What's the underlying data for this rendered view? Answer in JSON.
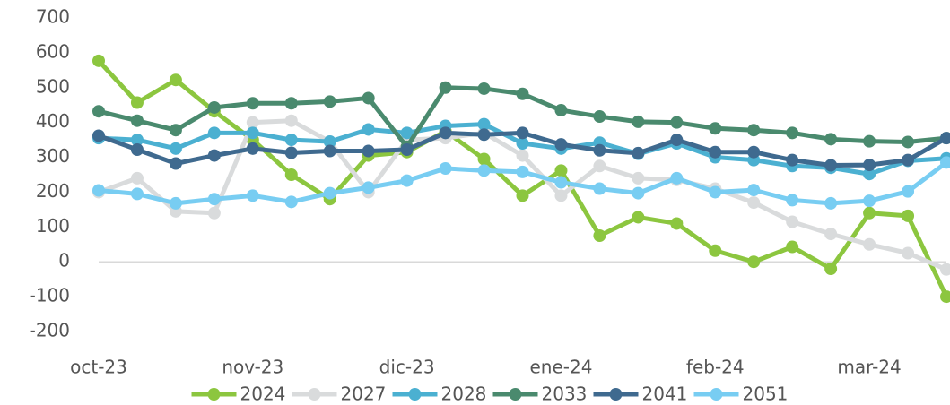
{
  "chart_data": {
    "type": "line",
    "categories": [
      "oct-23",
      null,
      null,
      null,
      "nov-23",
      null,
      null,
      null,
      "dic-23",
      null,
      null,
      null,
      "ene-24",
      null,
      null,
      null,
      "feb-24",
      null,
      null,
      null,
      "mar-24",
      null,
      null
    ],
    "series": [
      {
        "name": "2024",
        "color": "#8cc63f",
        "values": [
          577,
          457,
          522,
          432,
          350,
          250,
          180,
          305,
          315,
          375,
          295,
          190,
          262,
          75,
          128,
          110,
          32,
          0,
          43,
          -20,
          140,
          132,
          -100
        ]
      },
      {
        "name": "2027",
        "color": "#d9dbdc",
        "values": [
          200,
          240,
          145,
          140,
          400,
          405,
          345,
          200,
          350,
          355,
          370,
          305,
          190,
          275,
          240,
          235,
          210,
          170,
          115,
          80,
          50,
          25,
          -22
        ]
      },
      {
        "name": "2028",
        "color": "#4bb0d1",
        "values": [
          355,
          350,
          325,
          370,
          370,
          350,
          345,
          380,
          370,
          390,
          395,
          340,
          325,
          342,
          310,
          340,
          300,
          292,
          275,
          270,
          252,
          290,
          297
        ]
      },
      {
        "name": "2033",
        "color": "#4a8a6e",
        "values": [
          432,
          405,
          378,
          443,
          455,
          455,
          460,
          470,
          330,
          500,
          497,
          482,
          435,
          417,
          402,
          400,
          383,
          378,
          370,
          352,
          346,
          344,
          355
        ]
      },
      {
        "name": "2041",
        "color": "#3f6a8f",
        "values": [
          362,
          322,
          282,
          305,
          325,
          313,
          318,
          318,
          322,
          370,
          365,
          370,
          337,
          320,
          312,
          350,
          315,
          315,
          292,
          277,
          278,
          292,
          355
        ]
      },
      {
        "name": "2051",
        "color": "#78cdf2",
        "values": [
          205,
          195,
          168,
          180,
          190,
          172,
          197,
          213,
          233,
          268,
          262,
          258,
          228,
          210,
          197,
          240,
          200,
          206,
          177,
          168,
          175,
          202,
          285
        ]
      }
    ],
    "ylim": [
      -200,
      700
    ],
    "yticks": [
      -200,
      -100,
      0,
      100,
      200,
      300,
      400,
      500,
      600,
      700
    ],
    "grid": false,
    "legend": "bottom"
  }
}
